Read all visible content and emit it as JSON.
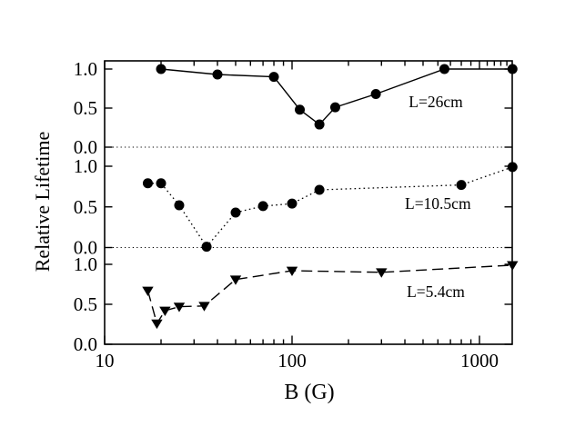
{
  "figure": {
    "background_color": "#ffffff",
    "ink_color": "#000000",
    "description": "Three stacked line plots of relative lifetime versus magnetic field B on a logarithmic x axis"
  },
  "axes": {
    "x_label": "B (G)",
    "y_label": "Relative Lifetime",
    "x_scale": "log",
    "x_range": [
      10,
      1495
    ],
    "x_major_ticks": [
      10,
      100,
      1000
    ],
    "x_major_tick_labels": [
      "10",
      "100",
      "1000"
    ],
    "x_minor_ticks_bottom": [
      20,
      30,
      40,
      50,
      60,
      70,
      80,
      90,
      200,
      300,
      400,
      500,
      600,
      700,
      800,
      900
    ],
    "x_minor_ticks_top": [
      20,
      30,
      40,
      50,
      60,
      70,
      80,
      90,
      200,
      300,
      400,
      500,
      600,
      700,
      800,
      900,
      1100,
      1200,
      1300,
      1400
    ],
    "y_panel_tick_values": [
      1.0,
      0.5,
      0.0
    ],
    "y_panel_tick_labels": [
      "1.0",
      "0.5",
      "0.0"
    ],
    "grid": false,
    "legend": "inline curve labels"
  },
  "chart_data": [
    {
      "type": "line",
      "panel": "top",
      "name": "L=26cm",
      "label_text": "L=26cm",
      "label_anchor": {
        "B": 585,
        "value": 0.58
      },
      "marker": "circle",
      "line_style": "solid",
      "x": [
        20,
        40,
        80,
        110,
        140,
        170,
        280,
        650,
        1500
      ],
      "values": [
        1.0,
        0.93,
        0.9,
        0.48,
        0.29,
        0.51,
        0.68,
        1.0,
        1.0
      ],
      "xlabel": "B (G)",
      "ylabel": "Relative Lifetime",
      "xscale": "log",
      "xlim": [
        10,
        1495
      ],
      "ylim": [
        0.0,
        1.1
      ],
      "zero_line_dotted": true
    },
    {
      "type": "line",
      "panel": "middle",
      "name": "L=10.5cm",
      "label_text": "L=10.5cm",
      "label_anchor": {
        "B": 600,
        "value": 0.54
      },
      "marker": "circle",
      "line_style": "dotted",
      "x": [
        17,
        20,
        25,
        35,
        50,
        70,
        100,
        140,
        800,
        1500
      ],
      "values": [
        0.79,
        0.79,
        0.52,
        0.01,
        0.43,
        0.51,
        0.54,
        0.71,
        0.77,
        0.99
      ],
      "xlabel": "B (G)",
      "ylabel": "Relative Lifetime",
      "xscale": "log",
      "xlim": [
        10,
        1495
      ],
      "ylim": [
        0.0,
        1.2
      ],
      "zero_line_dotted": true
    },
    {
      "type": "line",
      "panel": "bottom",
      "name": "L=5.4cm",
      "label_text": "L=5.4cm",
      "label_anchor": {
        "B": 585,
        "value": 0.66
      },
      "marker": "triangle-down",
      "line_style": "dashed",
      "x": [
        17,
        19,
        21,
        25,
        34,
        50,
        100,
        300,
        1500
      ],
      "values": [
        0.67,
        0.26,
        0.42,
        0.47,
        0.48,
        0.81,
        0.92,
        0.9,
        0.99
      ],
      "xlabel": "B (G)",
      "ylabel": "Relative Lifetime",
      "xscale": "log",
      "xlim": [
        10,
        1495
      ],
      "ylim": [
        0.0,
        1.1
      ],
      "zero_line_dotted": false
    }
  ]
}
